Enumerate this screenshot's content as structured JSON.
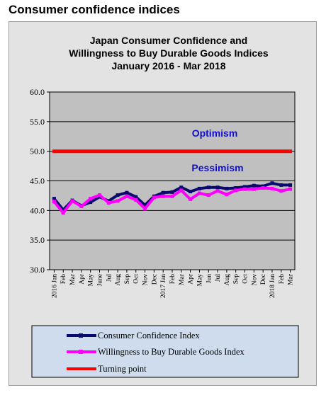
{
  "page": {
    "heading": "Consumer confidence indices"
  },
  "colors": {
    "confidence": "#0a0a6e",
    "willingness": "#ff00ff",
    "turning": "#ff0000",
    "plot_bg": "#c0c0c0",
    "frame_bg": "#e3e3e3",
    "legend_bg": "#cfdcee",
    "zone_text": "#1010cc"
  },
  "chart_data": {
    "type": "line",
    "title": [
      "Japan Consumer Confidence and",
      "Willingness to Buy Durable Goods Indices",
      "January 2016 - Mar 2018"
    ],
    "xlabel": "",
    "ylabel": "",
    "ylim": [
      30,
      60
    ],
    "yticks": [
      "30.0",
      "35.0",
      "40.0",
      "45.0",
      "50.0",
      "55.0",
      "60.0"
    ],
    "categories": [
      "2016 Jan",
      "Feb",
      "Mar",
      "Apr",
      "May",
      "June",
      "Jul",
      "Aug",
      "Sep",
      "Oct",
      "Nov",
      "Dec",
      "2017 Jan",
      "Feb",
      "Mar",
      "Apr",
      "May",
      "Jun",
      "Jul",
      "Aug",
      "Sep",
      "Oct",
      "Nov",
      "Dec",
      "2018 Jan",
      "Feb",
      "Mar"
    ],
    "annotations": {
      "above": "Optimism",
      "below": "Pessimism"
    },
    "grid": true,
    "legend_position": "bottom",
    "series": [
      {
        "name": "Consumer Confidence Index",
        "key": "confidence",
        "values": [
          42.0,
          40.1,
          41.7,
          40.8,
          41.4,
          42.3,
          41.6,
          42.6,
          43.0,
          42.3,
          40.9,
          42.4,
          43.0,
          43.1,
          43.9,
          43.2,
          43.7,
          43.9,
          43.9,
          43.7,
          43.8,
          44.0,
          44.2,
          44.1,
          44.6,
          44.3,
          44.3
        ]
      },
      {
        "name": "Willingness to Buy Durable Goods Index",
        "key": "willingness",
        "values": [
          41.5,
          39.6,
          41.6,
          40.7,
          42.0,
          42.6,
          41.3,
          41.6,
          42.4,
          41.8,
          40.3,
          42.2,
          42.4,
          42.4,
          43.4,
          41.9,
          42.9,
          42.6,
          43.3,
          42.7,
          43.4,
          43.6,
          43.6,
          43.8,
          43.7,
          43.3,
          43.6
        ]
      },
      {
        "name": "Turning point",
        "key": "turning",
        "values": [
          50,
          50,
          50,
          50,
          50,
          50,
          50,
          50,
          50,
          50,
          50,
          50,
          50,
          50,
          50,
          50,
          50,
          50,
          50,
          50,
          50,
          50,
          50,
          50,
          50,
          50,
          50
        ]
      }
    ]
  }
}
